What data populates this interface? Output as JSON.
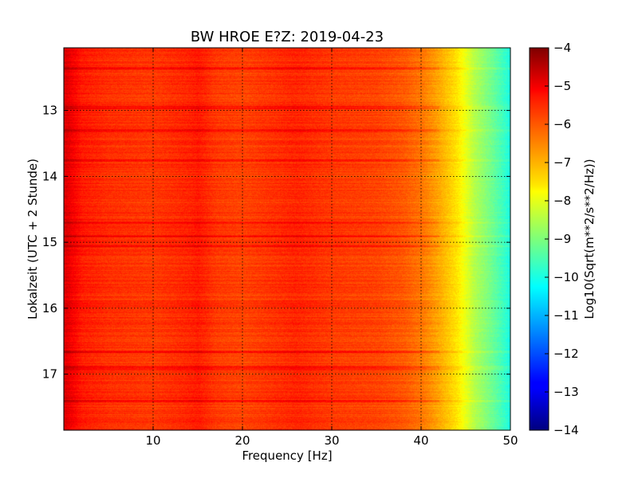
{
  "chart_data": {
    "type": "heatmap",
    "title": "BW HROE E?Z: 2019-04-23",
    "xlabel": "Frequency [Hz]",
    "ylabel": "Lokalzeit (UTC + 2 Stunde)",
    "colorbar_label": "Log10(Sqrt(m**2/s**2/Hz))",
    "xlim": [
      0,
      50
    ],
    "ylim": [
      12.05,
      17.85
    ],
    "y_inverted": true,
    "x_ticks": [
      10,
      20,
      30,
      40,
      50
    ],
    "y_ticks": [
      13,
      14,
      15,
      16,
      17
    ],
    "clim": [
      -14,
      -4
    ],
    "colorbar_ticks": [
      -4,
      -5,
      -6,
      -7,
      -8,
      -9,
      -10,
      -11,
      -12,
      -13,
      -14
    ],
    "colormap": "jet",
    "grid": true,
    "spectrum_profile": {
      "frequency_hz": [
        0,
        1,
        2,
        5,
        10,
        14,
        15,
        17,
        20,
        24,
        26,
        30,
        35,
        38,
        40,
        42,
        44,
        45,
        46,
        48,
        50
      ],
      "level": [
        -4.9,
        -5.2,
        -5.5,
        -5.7,
        -5.8,
        -5.6,
        -5.5,
        -5.8,
        -5.9,
        -5.7,
        -5.6,
        -5.8,
        -5.9,
        -6.1,
        -6.4,
        -6.9,
        -7.5,
        -8.0,
        -8.5,
        -9.2,
        -10.0
      ]
    },
    "noisy_time_bands_hours": [
      12.35,
      12.95,
      13.3,
      13.75,
      14.7,
      14.9,
      15.05,
      16.65,
      16.9,
      17.4
    ]
  }
}
